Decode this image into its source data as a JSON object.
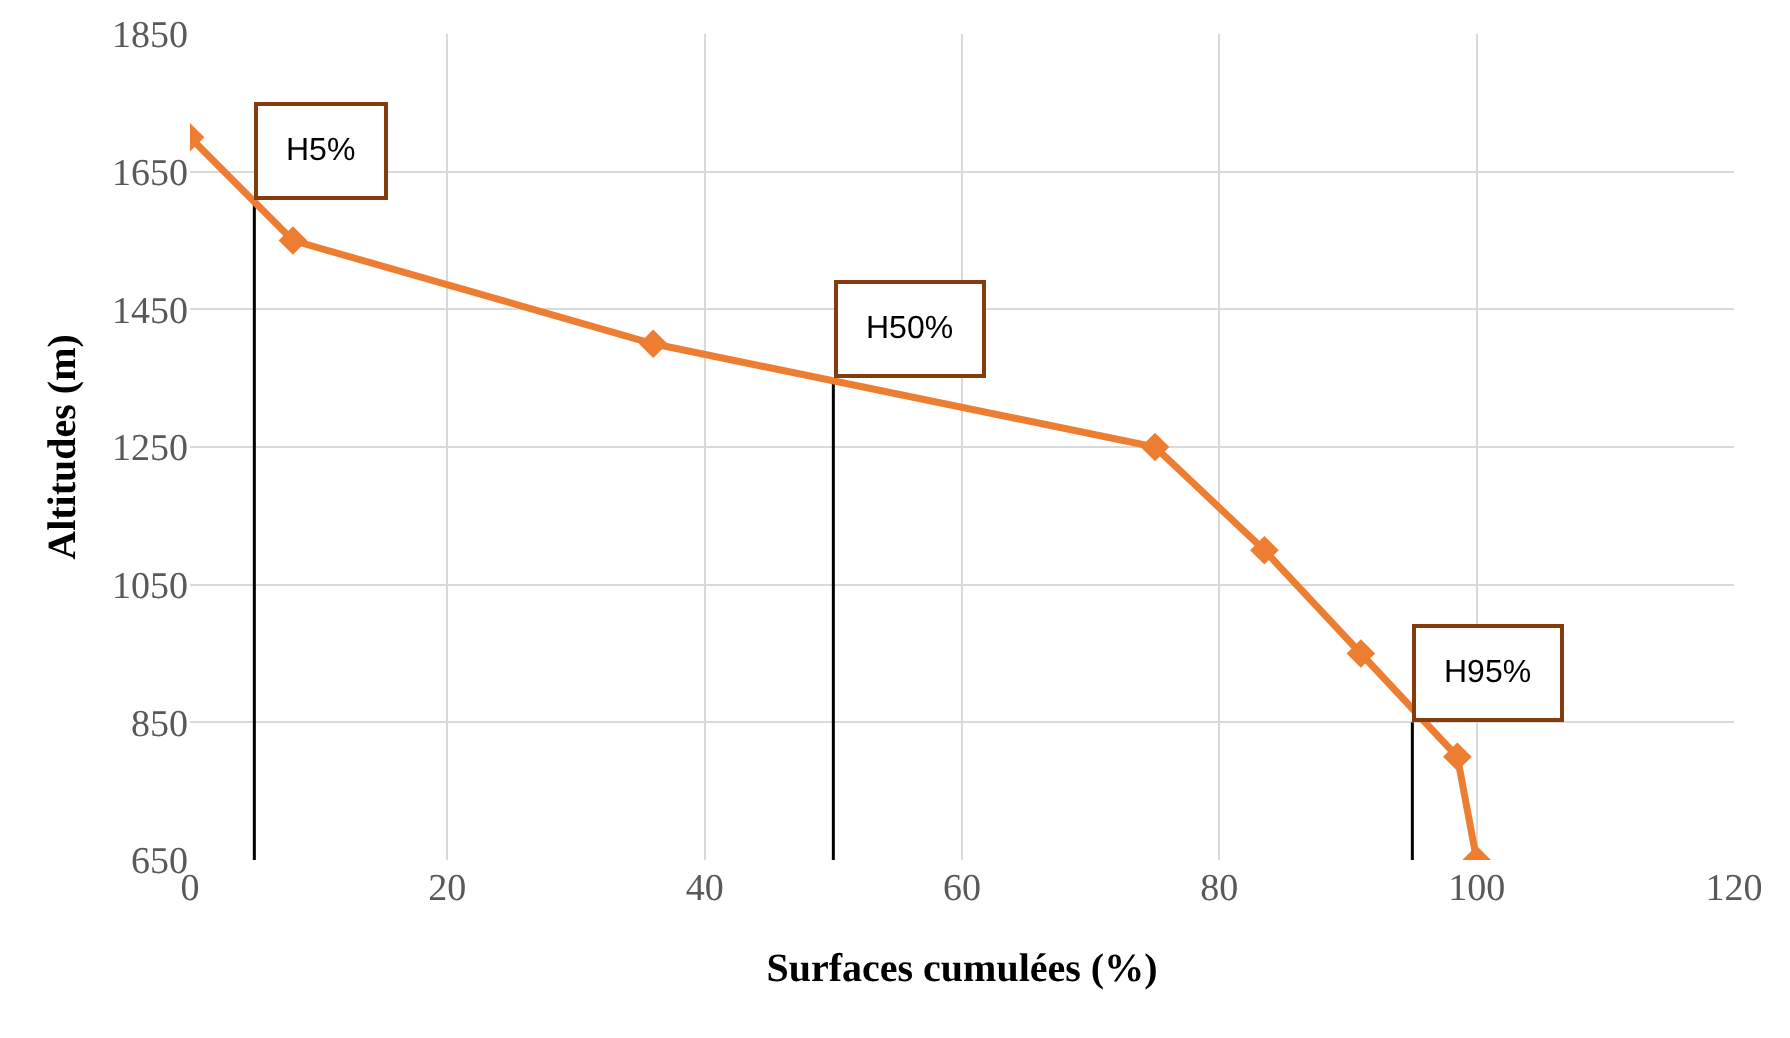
{
  "chart_data": {
    "type": "line",
    "xlabel": "Surfaces cumulées (%)",
    "ylabel": "Altitudes (m)",
    "x": [
      0,
      8,
      36,
      75,
      83.5,
      91,
      98.5,
      100
    ],
    "series": [
      {
        "color": "#ed7d31",
        "values": [
          1700,
          1550,
          1400,
          1250,
          1100,
          950,
          800,
          650
        ]
      },
      {
        "type": "line",
        "color": "#000000",
        "marker": "none",
        "x": [
          5,
          5
        ],
        "values": [
          650,
          1610
        ]
      },
      {
        "type": "line",
        "color": "#000000",
        "marker": "none",
        "x": [
          50,
          50
        ],
        "values": [
          650,
          1350
        ]
      },
      {
        "type": "line",
        "color": "#000000",
        "marker": "none",
        "x": [
          95,
          95
        ],
        "values": [
          650,
          850
        ]
      }
    ],
    "xlim": [
      0,
      120
    ],
    "xticks": [
      0,
      20,
      40,
      60,
      80,
      100,
      120
    ],
    "ylim": [
      650,
      1850
    ],
    "yticks": [
      650,
      850,
      1050,
      1250,
      1450,
      1650,
      1850
    ],
    "annotations": [
      {
        "text": "H5%",
        "x": 5,
        "y": 1610
      },
      {
        "text": "H50%",
        "x": 50,
        "y": 1350
      },
      {
        "text": "H95%",
        "x": 95,
        "y": 850
      }
    ],
    "grid": true,
    "marker": "diamond",
    "line_style": "solid"
  }
}
